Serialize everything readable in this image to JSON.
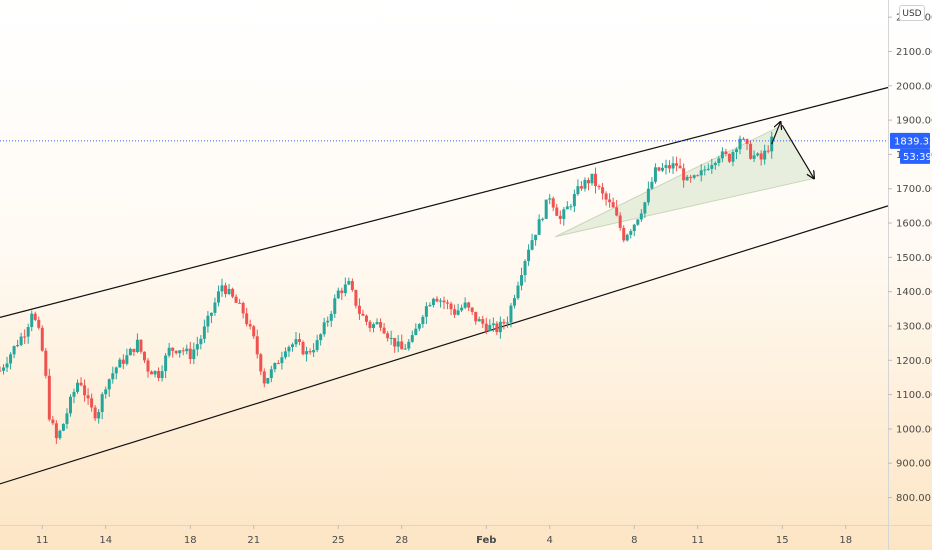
{
  "chart_data": {
    "type": "candlestick",
    "currency": "USD",
    "last_price": "1839.32",
    "countdown": "53:39",
    "y_range": [
      720,
      2250
    ],
    "x_range": [
      "2021-01-09",
      "2021-02-20"
    ],
    "y_ticks": [
      "2200.00",
      "2100.00",
      "2000.00",
      "1900.00",
      "1800.00",
      "1700.00",
      "1600.00",
      "1500.00",
      "1400.00",
      "1300.00",
      "1200.00",
      "1100.00",
      "1000.00",
      "900.00",
      "800.00"
    ],
    "x_ticks": [
      {
        "date": "2021-01-11",
        "label": "11"
      },
      {
        "date": "2021-01-14",
        "label": "14"
      },
      {
        "date": "2021-01-18",
        "label": "18"
      },
      {
        "date": "2021-01-21",
        "label": "21"
      },
      {
        "date": "2021-01-25",
        "label": "25"
      },
      {
        "date": "2021-01-28",
        "label": "28"
      },
      {
        "date": "2021-02-01",
        "label": "Feb",
        "bold": true
      },
      {
        "date": "2021-02-04",
        "label": "4"
      },
      {
        "date": "2021-02-08",
        "label": "8"
      },
      {
        "date": "2021-02-11",
        "label": "11"
      },
      {
        "date": "2021-02-15",
        "label": "15"
      },
      {
        "date": "2021-02-18",
        "label": "18"
      }
    ],
    "price_path": [
      [
        "2021-01-09T00:00",
        1170
      ],
      [
        "2021-01-09T18:00",
        1245
      ],
      [
        "2021-01-10T06:00",
        1290
      ],
      [
        "2021-01-10T12:00",
        1345
      ],
      [
        "2021-01-10T20:00",
        1280
      ],
      [
        "2021-01-11T02:00",
        1200
      ],
      [
        "2021-01-11T08:00",
        1040
      ],
      [
        "2021-01-11T16:00",
        970
      ],
      [
        "2021-01-11T22:00",
        1000
      ],
      [
        "2021-01-12T08:00",
        1080
      ],
      [
        "2021-01-12T18:00",
        1150
      ],
      [
        "2021-01-13T06:00",
        1060
      ],
      [
        "2021-01-13T14:00",
        1040
      ],
      [
        "2021-01-14T00:00",
        1130
      ],
      [
        "2021-01-14T12:00",
        1180
      ],
      [
        "2021-01-15T00:00",
        1210
      ],
      [
        "2021-01-15T12:00",
        1250
      ],
      [
        "2021-01-16T00:00",
        1175
      ],
      [
        "2021-01-16T12:00",
        1160
      ],
      [
        "2021-01-17T00:00",
        1230
      ],
      [
        "2021-01-17T12:00",
        1235
      ],
      [
        "2021-01-18T00:00",
        1215
      ],
      [
        "2021-01-18T12:00",
        1265
      ],
      [
        "2021-01-19T00:00",
        1340
      ],
      [
        "2021-01-19T12:00",
        1420
      ],
      [
        "2021-01-20T00:00",
        1380
      ],
      [
        "2021-01-20T12:00",
        1340
      ],
      [
        "2021-01-21T00:00",
        1260
      ],
      [
        "2021-01-21T12:00",
        1140
      ],
      [
        "2021-01-22T00:00",
        1180
      ],
      [
        "2021-01-22T12:00",
        1240
      ],
      [
        "2021-01-23T00:00",
        1250
      ],
      [
        "2021-01-23T12:00",
        1220
      ],
      [
        "2021-01-24T00:00",
        1250
      ],
      [
        "2021-01-24T12:00",
        1320
      ],
      [
        "2021-01-25T00:00",
        1400
      ],
      [
        "2021-01-25T12:00",
        1420
      ],
      [
        "2021-01-26T00:00",
        1340
      ],
      [
        "2021-01-26T12:00",
        1300
      ],
      [
        "2021-01-27T00:00",
        1310
      ],
      [
        "2021-01-27T12:00",
        1260
      ],
      [
        "2021-01-28T00:00",
        1230
      ],
      [
        "2021-01-28T12:00",
        1260
      ],
      [
        "2021-01-29T00:00",
        1340
      ],
      [
        "2021-01-29T12:00",
        1390
      ],
      [
        "2021-01-30T00:00",
        1370
      ],
      [
        "2021-01-30T12:00",
        1340
      ],
      [
        "2021-01-31T00:00",
        1360
      ],
      [
        "2021-01-31T12:00",
        1320
      ],
      [
        "2021-02-01T00:00",
        1300
      ],
      [
        "2021-02-01T12:00",
        1290
      ],
      [
        "2021-02-02T00:00",
        1320
      ],
      [
        "2021-02-02T12:00",
        1430
      ],
      [
        "2021-02-03T00:00",
        1530
      ],
      [
        "2021-02-03T12:00",
        1600
      ],
      [
        "2021-02-04T00:00",
        1680
      ],
      [
        "2021-02-04T12:00",
        1610
      ],
      [
        "2021-02-05T00:00",
        1660
      ],
      [
        "2021-02-05T12:00",
        1710
      ],
      [
        "2021-02-06T00:00",
        1730
      ],
      [
        "2021-02-06T12:00",
        1680
      ],
      [
        "2021-02-07T00:00",
        1640
      ],
      [
        "2021-02-07T12:00",
        1560
      ],
      [
        "2021-02-08T00:00",
        1600
      ],
      [
        "2021-02-08T12:00",
        1660
      ],
      [
        "2021-02-09T00:00",
        1750
      ],
      [
        "2021-02-09T12:00",
        1760
      ],
      [
        "2021-02-10T00:00",
        1770
      ],
      [
        "2021-02-10T12:00",
        1720
      ],
      [
        "2021-02-11T00:00",
        1730
      ],
      [
        "2021-02-11T12:00",
        1770
      ],
      [
        "2021-02-12T00:00",
        1800
      ],
      [
        "2021-02-12T12:00",
        1790
      ],
      [
        "2021-02-13T00:00",
        1850
      ],
      [
        "2021-02-13T12:00",
        1800
      ],
      [
        "2021-02-14T00:00",
        1785
      ],
      [
        "2021-02-14T12:00",
        1839
      ]
    ],
    "drawings": {
      "upper_channel": {
        "from": [
          "2021-01-09T00:00",
          1325
        ],
        "to": [
          "2021-02-20T00:00",
          1995
        ]
      },
      "lower_channel": {
        "from": [
          "2021-01-09T00:00",
          840
        ],
        "to": [
          "2021-02-20T00:00",
          1650
        ]
      },
      "rising_wedge": [
        [
          "2021-02-04T06:00",
          1560
        ],
        [
          "2021-02-15T00:00",
          1885
        ],
        [
          "2021-02-16T12:00",
          1730
        ],
        [
          "2021-02-04T06:00",
          1560
        ]
      ],
      "projection_arrows": [
        {
          "from": [
            "2021-02-14T12:00",
            1830
          ],
          "to": [
            "2021-02-14T22:00",
            1895
          ]
        },
        {
          "from": [
            "2021-02-15T00:00",
            1885
          ],
          "to": [
            "2021-02-16T12:00",
            1730
          ]
        }
      ]
    }
  }
}
